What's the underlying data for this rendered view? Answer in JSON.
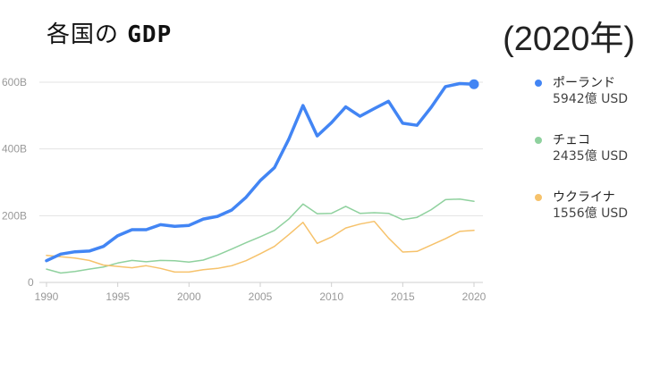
{
  "header": {
    "title_prefix": "各国の",
    "title_gdp": "GDP",
    "year": "(2020年)"
  },
  "legend": [
    {
      "name": "ポーランド",
      "value": "5942億 USD",
      "color": "#4285f4"
    },
    {
      "name": "チェコ",
      "value": "2435億 USD",
      "color": "#8fd19e"
    },
    {
      "name": "ウクライナ",
      "value": "1556億 USD",
      "color": "#f6c26b"
    }
  ],
  "chart_data": {
    "type": "line",
    "x": [
      1990,
      1991,
      1992,
      1993,
      1994,
      1995,
      1996,
      1997,
      1998,
      1999,
      2000,
      2001,
      2002,
      2003,
      2004,
      2005,
      2006,
      2007,
      2008,
      2009,
      2010,
      2011,
      2012,
      2013,
      2014,
      2015,
      2016,
      2017,
      2018,
      2019,
      2020
    ],
    "series": [
      {
        "name": "ポーランド",
        "color": "#4285f4",
        "values": [
          65,
          85,
          92,
          94,
          108,
          140,
          158,
          158,
          173,
          168,
          171,
          190,
          198,
          217,
          255,
          305,
          344,
          429,
          530,
          439,
          479,
          526,
          498,
          521,
          543,
          477,
          471,
          525,
          587,
          596,
          594
        ]
      },
      {
        "name": "チェコ",
        "color": "#8fd19e",
        "values": [
          40,
          28,
          33,
          40,
          46,
          58,
          66,
          62,
          66,
          65,
          61,
          67,
          82,
          100,
          119,
          137,
          156,
          190,
          235,
          206,
          207,
          228,
          207,
          209,
          207,
          188,
          195,
          218,
          248,
          250,
          243
        ]
      },
      {
        "name": "ウクライナ",
        "color": "#f6c26b",
        "values": [
          81,
          77,
          73,
          66,
          52,
          48,
          44,
          50,
          42,
          31,
          31,
          38,
          42,
          50,
          65,
          86,
          108,
          143,
          180,
          117,
          136,
          163,
          175,
          183,
          133,
          91,
          93,
          112,
          131,
          153,
          156
        ]
      }
    ],
    "xticks": [
      1990,
      1995,
      2000,
      2005,
      2010,
      2015,
      2020
    ],
    "xtick_labels": [
      "1990",
      "1995",
      "2000",
      "2005",
      "2010",
      "2015",
      "2020"
    ],
    "yticks": [
      0,
      200,
      400,
      600
    ],
    "ytick_labels": [
      "0",
      "200B",
      "400B",
      "600B"
    ],
    "xlim": [
      1990,
      2020
    ],
    "ylim": [
      0,
      600
    ],
    "grid": "horizontal"
  }
}
